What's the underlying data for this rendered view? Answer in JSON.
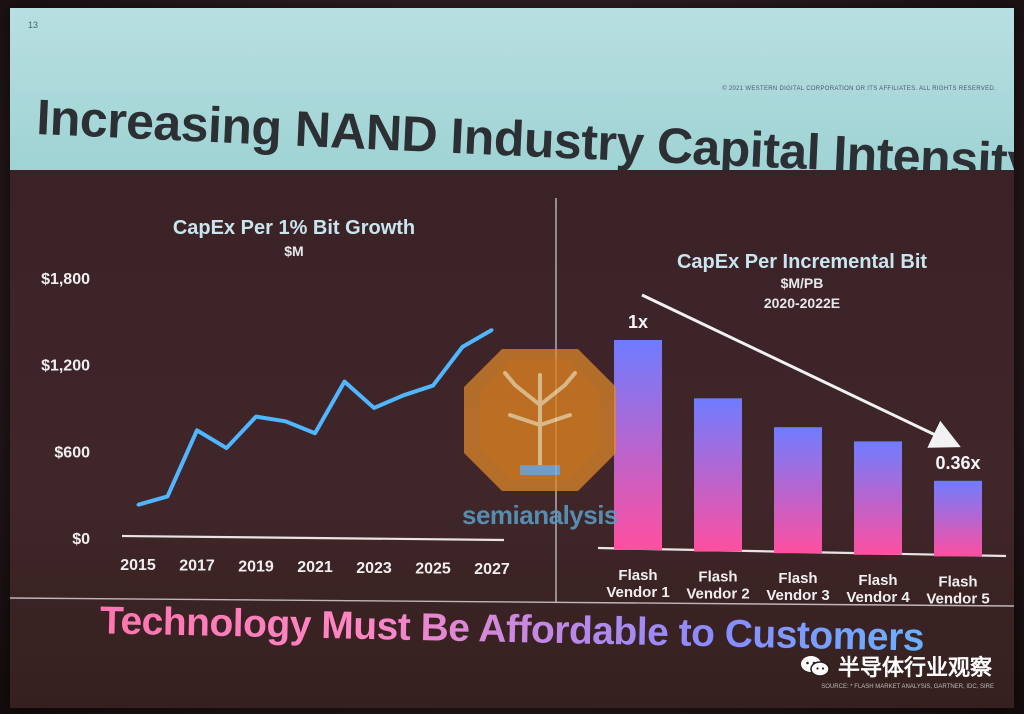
{
  "slide": {
    "number": "13",
    "title": "Increasing NAND Industry Capital Intensity",
    "copyright": "© 2021 WESTERN DIGITAL CORPORATION OR ITS AFFILIATES. ALL RIGHTS RESERVED.",
    "footer": "Technology Must Be Affordable to Customers",
    "source_note": "SOURCE: * FLASH MARKET ANALYSIS, GARTNER, IDC, SIRE"
  },
  "watermark": {
    "text": "semianalysis"
  },
  "channel": {
    "name": "半导体行业观察"
  },
  "colors": {
    "line": "#4fb6ff",
    "bar_top": "#6f7cff",
    "bar_bottom": "#ff4fa0",
    "title_band": "#a9d9da"
  },
  "chart_data": [
    {
      "type": "line",
      "title": "CapEx Per 1% Bit Growth",
      "subtitle": "$M",
      "x": [
        2015,
        2016,
        2017,
        2018,
        2019,
        2020,
        2021,
        2022,
        2023,
        2024,
        2025,
        2026,
        2027
      ],
      "x_tick_labels": [
        "2015",
        "2017",
        "2019",
        "2021",
        "2023",
        "2025",
        "2027"
      ],
      "x_tick_values": [
        2015,
        2017,
        2019,
        2021,
        2023,
        2025,
        2027
      ],
      "values": [
        230,
        290,
        750,
        630,
        850,
        820,
        740,
        1100,
        920,
        1010,
        1080,
        1350,
        1470
      ],
      "y_tick_labels": [
        "$0",
        "$600",
        "$1,200",
        "$1,800"
      ],
      "y_tick_values": [
        0,
        600,
        1200,
        1800
      ],
      "ylim": [
        0,
        1800
      ],
      "xlim": [
        2015,
        2027
      ],
      "grid": false
    },
    {
      "type": "bar",
      "title": "CapEx Per Incremental Bit",
      "subtitle": "$M/PB",
      "subtitle2": "2020-2022E",
      "categories": [
        [
          "Flash",
          "Vendor 1"
        ],
        [
          "Flash",
          "Vendor 2"
        ],
        [
          "Flash",
          "Vendor 3"
        ],
        [
          "Flash",
          "Vendor 4"
        ],
        [
          "Flash",
          "Vendor 5"
        ]
      ],
      "values": [
        1.0,
        0.73,
        0.6,
        0.54,
        0.36
      ],
      "ylim": [
        0,
        1.0
      ],
      "annotations": [
        {
          "category_index": 0,
          "text": "1x"
        },
        {
          "category_index": 4,
          "text": "0.36x"
        }
      ],
      "trend_arrow": "downward from Flash Vendor 1 to Flash Vendor 5"
    }
  ]
}
